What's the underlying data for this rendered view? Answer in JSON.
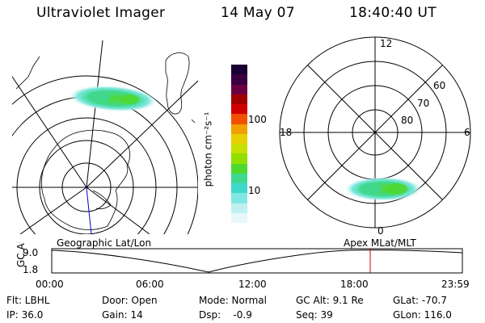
{
  "header": {
    "title": "Ultraviolet Imager",
    "date": "14 May 07",
    "time": "18:40:40 UT"
  },
  "colorbar": {
    "unit_label": "photon cm⁻²s⁻¹",
    "ticks": [
      "100",
      "10"
    ],
    "colors": [
      "#1a0030",
      "#3a0040",
      "#6a0040",
      "#a00000",
      "#d00000",
      "#f05000",
      "#f0a000",
      "#e8d000",
      "#c8e000",
      "#90e000",
      "#50d830",
      "#40d890",
      "#40d8c8",
      "#80e8e0",
      "#c0f0f0",
      "#e8f8f8"
    ]
  },
  "left_map": {
    "label": "Geographic Lat/Lon"
  },
  "right_map": {
    "label": "Apex  MLat/MLT",
    "mlt_labels": {
      "top": "12",
      "left": "18",
      "right": "6",
      "bottom": "0"
    },
    "lat_labels": [
      "60",
      "70",
      "80"
    ]
  },
  "altitude_plot": {
    "axis_label": "GC Alt",
    "y_ticks": [
      "9.0",
      "1.8"
    ],
    "x_ticks": [
      "00:00",
      "06:00",
      "12:00",
      "18:00",
      "23:59"
    ],
    "current_marker_color": "#cc0000"
  },
  "status": {
    "filter": "Flt: LBHL",
    "ip": "IP: 36.0",
    "door": "Door: Open",
    "gain": "Gain: 14",
    "mode": "Mode: Normal",
    "dsp": "Dsp:    -0.9",
    "gc_alt": "GC Alt: 9.1 Re",
    "seq": "Seq: 39",
    "glat": "GLat: -70.7",
    "glon": "GLon: 116.0"
  }
}
